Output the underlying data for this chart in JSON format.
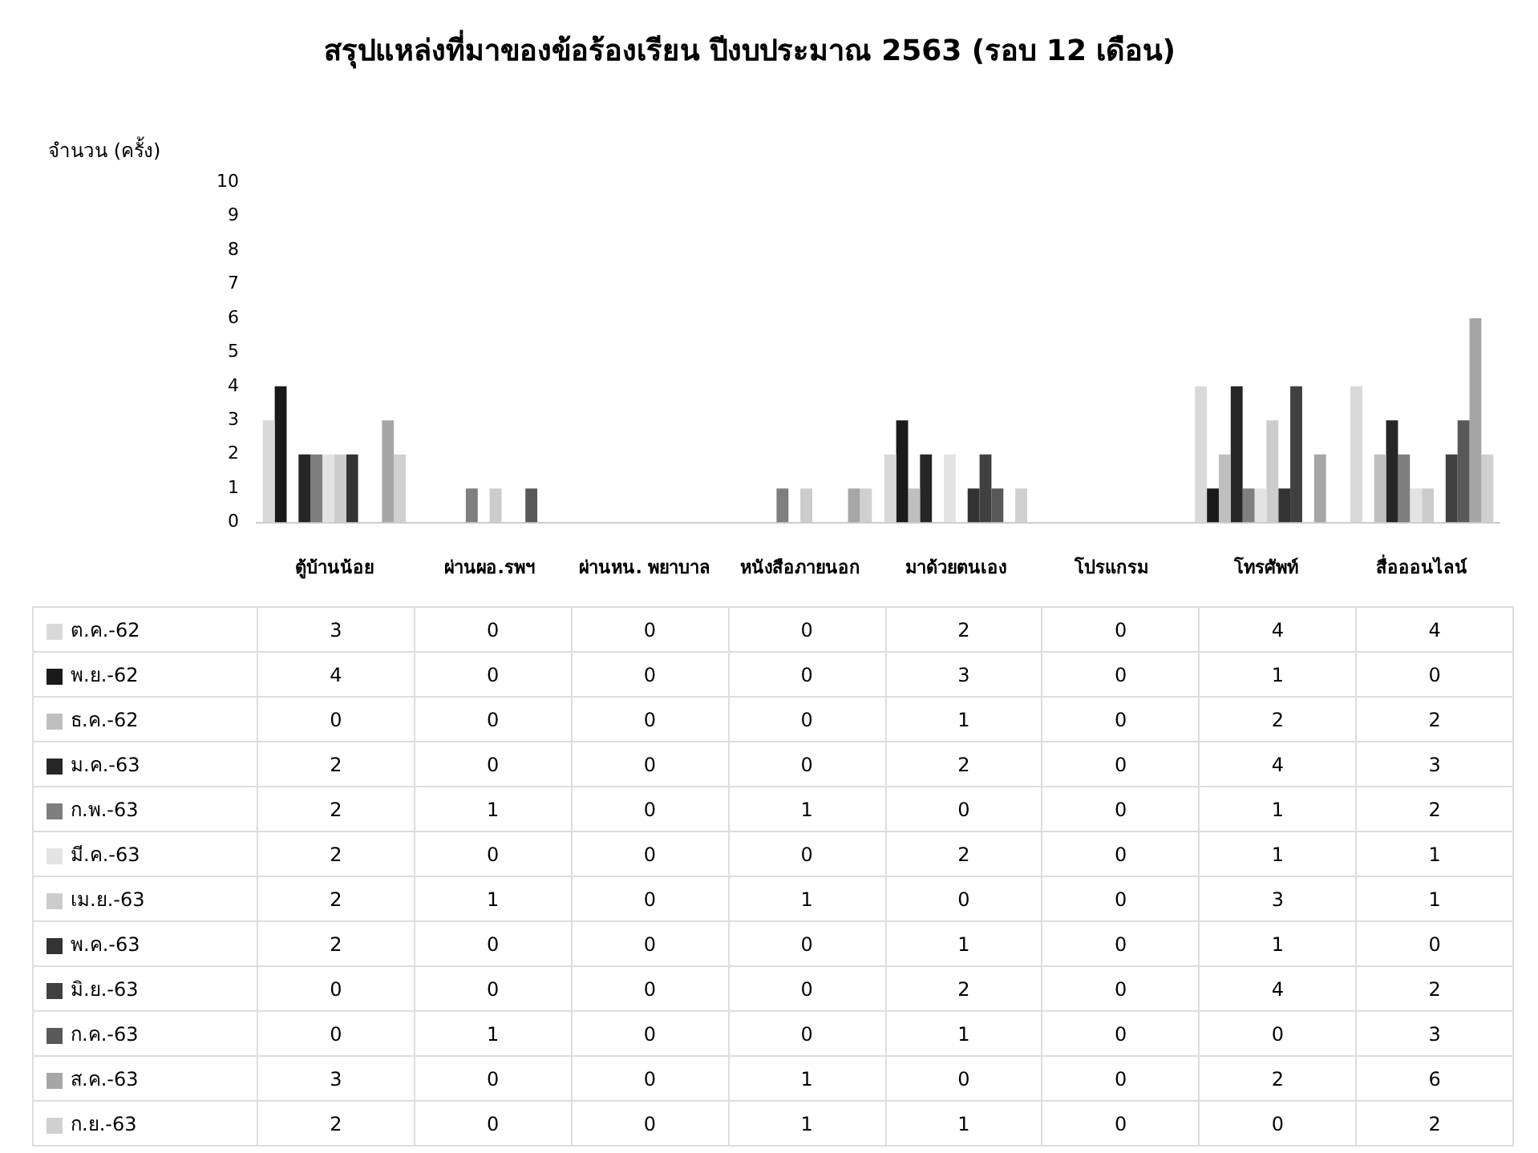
{
  "chart_data": {
    "type": "bar",
    "title": "สรุปแหล่งที่มาของข้อร้องเรียน ปีงบประมาณ 2563 (รอบ 12 เดือน)",
    "ylabel": "จำนวน (ครั้ง)",
    "categories": [
      "ตู้บ้านน้อย",
      "ผ่านผอ.รพฯ",
      "ผ่านหน. พยาบาล",
      "หนังสือภายนอก",
      "มาด้วยตนเอง",
      "โปรแกรม",
      "โทรศัพท์",
      "สื่อออนไลน์"
    ],
    "series": [
      {
        "name": "ต.ค.-62",
        "color": "#d9d9d9",
        "values": [
          3,
          0,
          0,
          0,
          2,
          0,
          4,
          4
        ]
      },
      {
        "name": "พ.ย.-62",
        "color": "#1a1a1a",
        "values": [
          4,
          0,
          0,
          0,
          3,
          0,
          1,
          0
        ]
      },
      {
        "name": "ธ.ค.-62",
        "color": "#bfbfbf",
        "values": [
          0,
          0,
          0,
          0,
          1,
          0,
          2,
          2
        ]
      },
      {
        "name": "ม.ค.-63",
        "color": "#262626",
        "values": [
          2,
          0,
          0,
          0,
          2,
          0,
          4,
          3
        ]
      },
      {
        "name": "ก.พ.-63",
        "color": "#7f7f7f",
        "values": [
          2,
          1,
          0,
          1,
          0,
          0,
          1,
          2
        ]
      },
      {
        "name": "มี.ค.-63",
        "color": "#e3e3e3",
        "values": [
          2,
          0,
          0,
          0,
          2,
          0,
          1,
          1
        ]
      },
      {
        "name": "เม.ย.-63",
        "color": "#cccccc",
        "values": [
          2,
          1,
          0,
          1,
          0,
          0,
          3,
          1
        ]
      },
      {
        "name": "พ.ค.-63",
        "color": "#333333",
        "values": [
          2,
          0,
          0,
          0,
          1,
          0,
          1,
          0
        ]
      },
      {
        "name": "มิ.ย.-63",
        "color": "#404040",
        "values": [
          0,
          0,
          0,
          0,
          2,
          0,
          4,
          2
        ]
      },
      {
        "name": "ก.ค.-63",
        "color": "#595959",
        "values": [
          0,
          1,
          0,
          0,
          1,
          0,
          0,
          3
        ]
      },
      {
        "name": "ส.ค.-63",
        "color": "#a6a6a6",
        "values": [
          3,
          0,
          0,
          1,
          0,
          0,
          2,
          6
        ]
      },
      {
        "name": "ก.ย.-63",
        "color": "#d0d0d0",
        "values": [
          2,
          0,
          0,
          1,
          1,
          0,
          0,
          2
        ]
      }
    ],
    "ylim": [
      0,
      10
    ],
    "yticks": [
      0,
      1,
      2,
      3,
      4,
      5,
      6,
      7,
      8,
      9,
      10
    ],
    "grid": false,
    "legend": "bottom",
    "data_labels": true
  }
}
